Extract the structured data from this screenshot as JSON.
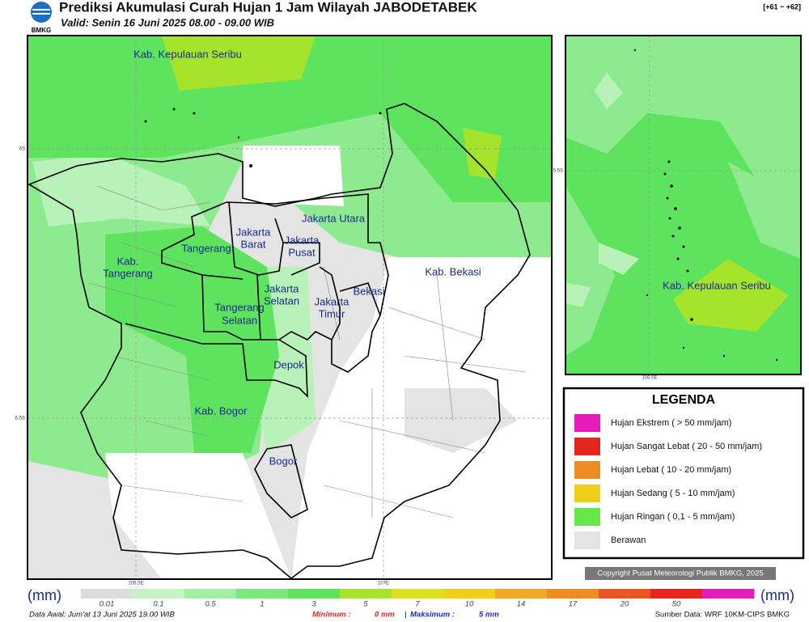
{
  "header": {
    "logo_text": "BMKG",
    "title": "Prediksi Akumulasi Curah Hujan 1 Jam Wilayah JABODETABEK",
    "valid": "Valid: Senin 16 Juni 2025 08.00 - 09.00 WIB",
    "code": "[+61 ~ +62]"
  },
  "main_map": {
    "labels": {
      "kepulauan_seribu": "Kab. Kepulauan Seribu",
      "jakarta_utara": "Jakarta Utara",
      "jakarta_barat": [
        "Jakarta",
        "Barat"
      ],
      "jakarta_pusat": [
        "Jakarta",
        "Pusat"
      ],
      "tangerang": "Tangerang",
      "kab_tangerang": [
        "Kab.",
        "Tangerang"
      ],
      "jakarta_selatan": [
        "Jakarta",
        "Selatan"
      ],
      "jakarta_timur": [
        "Jakarta",
        "Timur"
      ],
      "bekasi": "Bekasi",
      "kab_bekasi": "Kab. Bekasi",
      "tangerang_selatan": [
        "Tangerang",
        "Selatan"
      ],
      "depok": "Depok",
      "kab_bogor": "Kab. Bogor",
      "bogor": "Bogor"
    },
    "grid_labels": {
      "lat1": "6S",
      "lat2": "6.5S",
      "lon1": "106.5E",
      "lon2": "107E"
    }
  },
  "inset_map": {
    "labels": {
      "kepulauan_seribu": "Kab. Kepulauan Seribu"
    },
    "grid_labels": {
      "lat": "5.5S",
      "lon": "106.5E"
    }
  },
  "legend": {
    "title": "LEGENDA",
    "items": [
      {
        "label": "Hujan Ekstrem ( > 50 mm/jam)",
        "color": "#e61cb8"
      },
      {
        "label": "Hujan Sangat Lebat ( 20 - 50 mm/jam)",
        "color": "#e4261f"
      },
      {
        "label": "Hujan Lebat ( 10 - 20 mm/jam)",
        "color": "#ec8c22"
      },
      {
        "label": "Hujan Sedang ( 5 - 10 mm/jam)",
        "color": "#efcf1a"
      },
      {
        "label": "Hujan Ringan ( 0,1 - 5 mm/jam)",
        "color": "#66e84a"
      },
      {
        "label": "Berawan",
        "color": "#e4e4e4"
      }
    ]
  },
  "copyright": "Copyright Pusat Meteorologi Publik BMKG, 2025",
  "colorbar": {
    "unit": "(mm)",
    "ticks": [
      "0.01",
      "0.1",
      "0.5",
      "1",
      "3",
      "5",
      "7",
      "10",
      "14",
      "17",
      "20",
      "50"
    ],
    "colors": [
      "#dcdcdc",
      "#c6f2c6",
      "#a2eea2",
      "#7ce87c",
      "#5ee35e",
      "#a6e32b",
      "#dce21f",
      "#f0cf1a",
      "#eeaa22",
      "#ec8c22",
      "#e8561f",
      "#e4261f",
      "#e61cb8"
    ]
  },
  "footer": {
    "data_awal": "Data Awal: Jum'at 13 Juni 2025 19.00 WIB",
    "min_label": "Minimum :",
    "min_value": "0 mm",
    "sep": "|",
    "max_label": "Maksimum :",
    "max_value": "5 mm",
    "source": "Sumber Data: WRF 10KM-CIPS BMKG"
  }
}
